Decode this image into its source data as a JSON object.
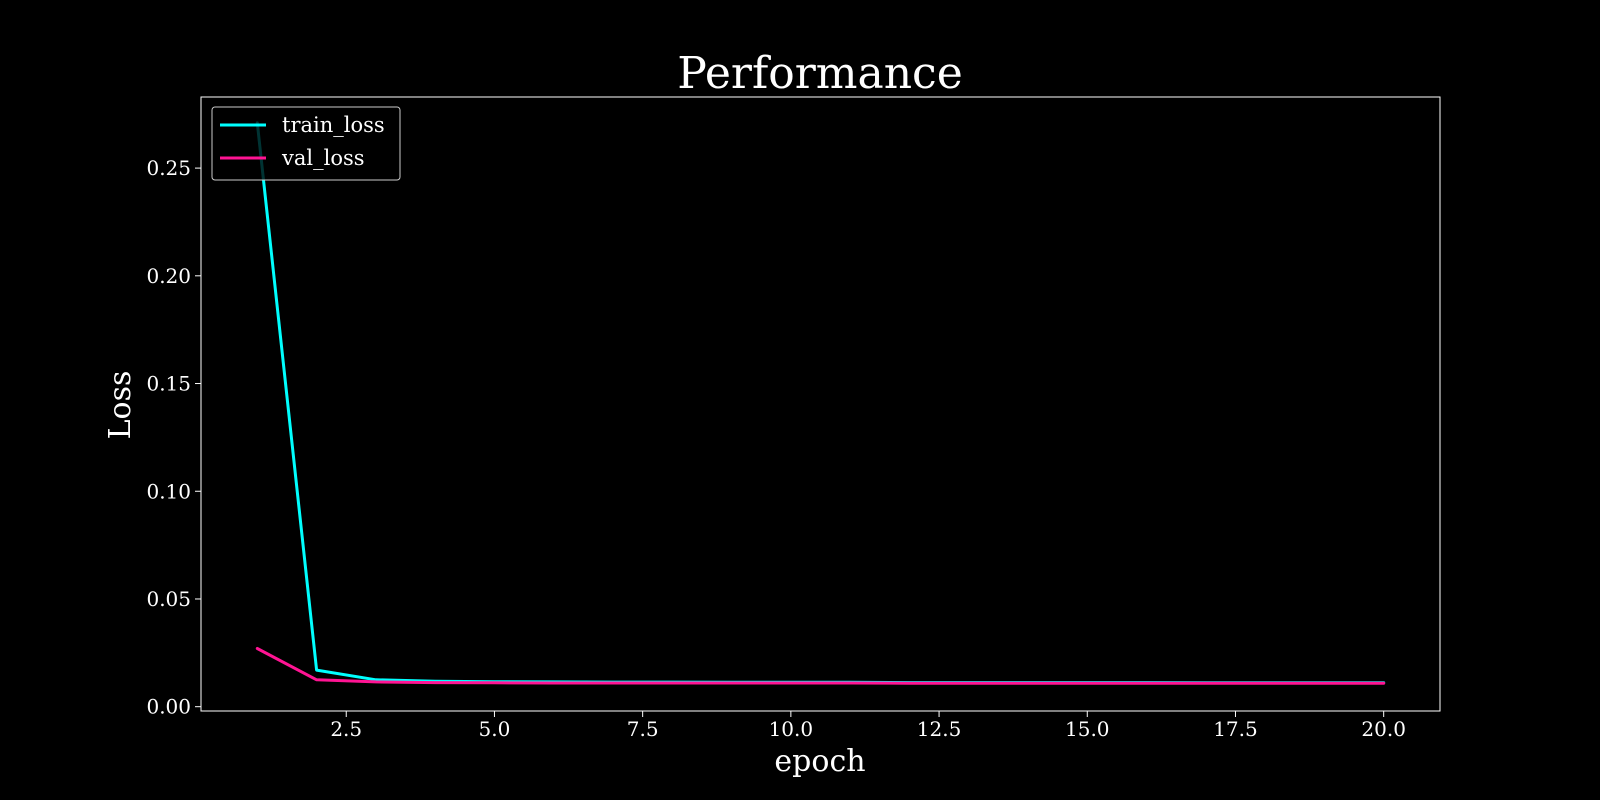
{
  "chart_data": {
    "type": "line",
    "title": "Performance",
    "xlabel": "epoch",
    "ylabel": "Loss",
    "xlim": [
      0.05,
      20.95
    ],
    "ylim": [
      -0.002,
      0.283
    ],
    "x_ticks": [
      2.5,
      5.0,
      7.5,
      10.0,
      12.5,
      15.0,
      17.5,
      20.0
    ],
    "x_tick_labels": [
      "2.5",
      "5.0",
      "7.5",
      "10.0",
      "12.5",
      "15.0",
      "17.5",
      "20.0"
    ],
    "y_ticks": [
      0.0,
      0.05,
      0.1,
      0.15,
      0.2,
      0.25
    ],
    "y_tick_labels": [
      "0.00",
      "0.05",
      "0.10",
      "0.15",
      "0.20",
      "0.25"
    ],
    "grid": false,
    "legend_position": "top-left",
    "background_color": "#000000",
    "x": [
      1,
      2,
      3,
      4,
      5,
      6,
      7,
      8,
      9,
      10,
      11,
      12,
      13,
      14,
      15,
      16,
      17,
      18,
      19,
      20
    ],
    "series": [
      {
        "name": "train_loss",
        "color": "#00ffff",
        "values": [
          0.271,
          0.017,
          0.0125,
          0.0118,
          0.0116,
          0.0115,
          0.0114,
          0.0114,
          0.0113,
          0.0113,
          0.0113,
          0.0112,
          0.0112,
          0.0112,
          0.0112,
          0.0112,
          0.0111,
          0.0111,
          0.0111,
          0.0111
        ]
      },
      {
        "name": "val_loss",
        "color": "#ff1493",
        "values": [
          0.027,
          0.0125,
          0.0115,
          0.0112,
          0.0111,
          0.011,
          0.011,
          0.011,
          0.011,
          0.011,
          0.011,
          0.0109,
          0.0109,
          0.0109,
          0.0109,
          0.0109,
          0.0109,
          0.0109,
          0.0109,
          0.0109
        ]
      }
    ]
  }
}
